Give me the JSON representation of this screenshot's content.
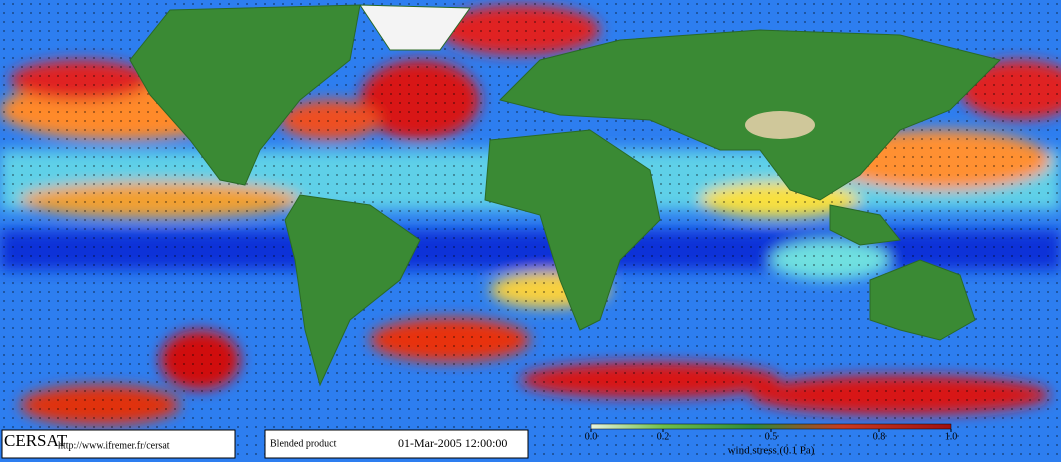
{
  "footer": {
    "logo": "CERSAT",
    "url": "http://www.ifremer.fr/cersat",
    "product": "Blended product",
    "date": "01-Mar-2005 12:00:00"
  },
  "colorbar": {
    "label": "wind stress (0.1 Pa)",
    "range": [
      0,
      1
    ],
    "ticks": [
      {
        "value": 0,
        "label": "0.0"
      },
      0.2,
      0.5,
      0.8,
      {
        "value": 1,
        "label": "1.0"
      }
    ]
  }
}
